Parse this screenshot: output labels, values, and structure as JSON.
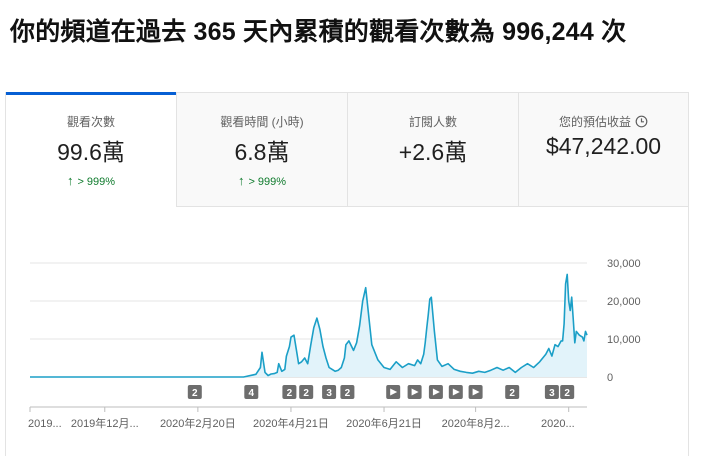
{
  "headline": "你的頻道在過去 365 天內累積的觀看次數為 996,244 次",
  "tabs": [
    {
      "label": "觀看次數",
      "value": "99.6萬",
      "delta": "> 999%",
      "active": true
    },
    {
      "label": "觀看時間 (小時)",
      "value": "6.8萬",
      "delta": "> 999%",
      "active": false
    },
    {
      "label": "訂閱人數",
      "value": "+2.6萬",
      "delta": "",
      "active": false
    },
    {
      "label": "您的預估收益",
      "value": "$47,242.00",
      "delta": "",
      "active": false,
      "icon": "clock-icon"
    }
  ],
  "colors": {
    "accent": "#065fd4",
    "line": "#1b9fc7",
    "fill": "#e2f3fa",
    "positive": "#0f7b2d"
  },
  "markers": [
    {
      "label": "2",
      "type": "count"
    },
    {
      "label": "4",
      "type": "count"
    },
    {
      "label": "2",
      "type": "count"
    },
    {
      "label": "2",
      "type": "count"
    },
    {
      "label": "3",
      "type": "count"
    },
    {
      "label": "2",
      "type": "count"
    },
    {
      "label": "",
      "type": "video"
    },
    {
      "label": "",
      "type": "video"
    },
    {
      "label": "",
      "type": "video"
    },
    {
      "label": "",
      "type": "video"
    },
    {
      "label": "",
      "type": "video"
    },
    {
      "label": "2",
      "type": "count"
    },
    {
      "label": "3",
      "type": "count"
    },
    {
      "label": "2",
      "type": "count"
    }
  ],
  "chart_data": {
    "type": "area",
    "ylim": [
      0,
      30000
    ],
    "yticks": [
      {
        "value": 30000,
        "label": "30,000"
      },
      {
        "value": 20000,
        "label": "20,000"
      },
      {
        "value": 10000,
        "label": "10,000"
      },
      {
        "value": 0,
        "label": "0"
      }
    ],
    "xticks": [
      "2019...",
      "2019年12月...",
      "2020年2月20日",
      "2020年4月21日",
      "2020年6月21日",
      "2020年8月2...",
      "2020..."
    ],
    "xdomain": [
      0,
      365
    ],
    "xtick_days": [
      0,
      49,
      110,
      171,
      232,
      292,
      353
    ],
    "marker_days": [
      108,
      145,
      170,
      181,
      196,
      208,
      238,
      252,
      266,
      279,
      292,
      316,
      342,
      352
    ],
    "series": [
      {
        "x": [
          0,
          140,
          148,
          151,
          152,
          154,
          156,
          158,
          160,
          162,
          163,
          165,
          167,
          168,
          170,
          171,
          173,
          175,
          176,
          178,
          180,
          182,
          184,
          186,
          188,
          190,
          192,
          194,
          196,
          198,
          200,
          202,
          204,
          206,
          207,
          209,
          212,
          214,
          216,
          218,
          220,
          224,
          228,
          232,
          236,
          240,
          244,
          248,
          252,
          254,
          256,
          258,
          259,
          260,
          261,
          262,
          263,
          265,
          267,
          270,
          274,
          278,
          282,
          286,
          290,
          294,
          298,
          302,
          306,
          310,
          314,
          318,
          322,
          326,
          330,
          334,
          338,
          340,
          342,
          344,
          346,
          348,
          349,
          350,
          351,
          352,
          353,
          354,
          355,
          356,
          357,
          358,
          360,
          362,
          363,
          364,
          365
        ],
        "y": [
          0,
          0,
          700,
          2500,
          6500,
          1200,
          400,
          800,
          900,
          1200,
          3500,
          1500,
          2000,
          5500,
          8000,
          10500,
          11000,
          6000,
          3500,
          4000,
          5000,
          3500,
          8500,
          13000,
          15500,
          12500,
          8000,
          5000,
          2500,
          2000,
          1500,
          1800,
          2500,
          5000,
          8500,
          9500,
          7000,
          9000,
          13500,
          20000,
          23500,
          8500,
          4500,
          2500,
          2000,
          4000,
          2500,
          3500,
          3000,
          4500,
          3500,
          6000,
          9000,
          13000,
          16500,
          20500,
          21000,
          12000,
          4500,
          2800,
          3500,
          2000,
          1500,
          1200,
          1000,
          1500,
          1200,
          1800,
          2500,
          1800,
          2500,
          1200,
          2500,
          3500,
          2500,
          4000,
          6000,
          7500,
          5500,
          8500,
          8000,
          9500,
          9500,
          14000,
          24500,
          27000,
          20000,
          17500,
          21000,
          15000,
          9000,
          12000,
          11000,
          10500,
          9500,
          12000,
          11000
        ]
      }
    ]
  }
}
